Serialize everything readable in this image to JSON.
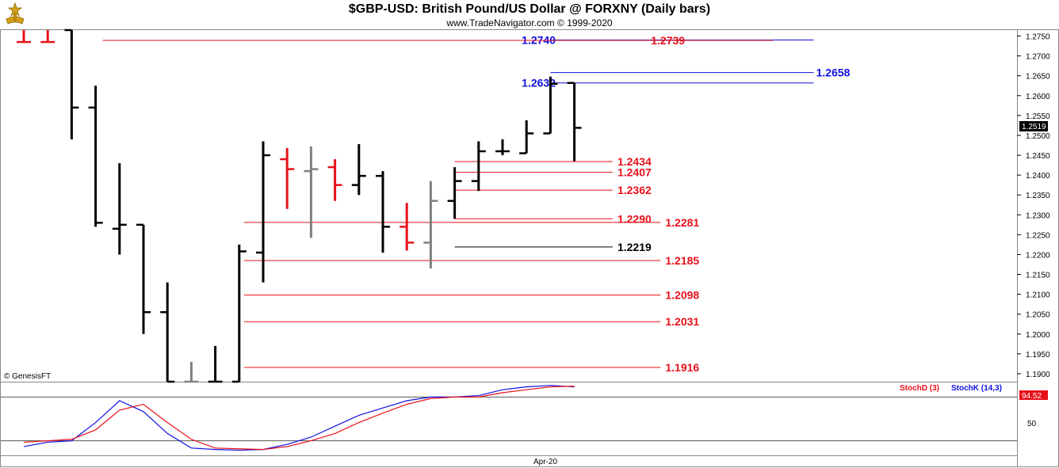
{
  "header": {
    "title": "$GBP-USD:  British Pound/US Dollar @ FORXNY  (Daily bars)",
    "subtitle": "www.TradeNavigator.com © 1999-2020"
  },
  "watermark": "© GenesisFT",
  "price_axis": {
    "ticks": [
      "1.2750",
      "1.2700",
      "1.2650",
      "1.2600",
      "1.2550",
      "1.2500",
      "1.2450",
      "1.2400",
      "1.2350",
      "1.2300",
      "1.2250",
      "1.2200",
      "1.2150",
      "1.2100",
      "1.2050",
      "1.2000",
      "1.1950",
      "1.1900"
    ],
    "last_price": "1.2519"
  },
  "stoch_panel": {
    "label_d": "StochD (3)",
    "label_k": "StochK (14,3)",
    "axis_tick": "50",
    "value": "94.52"
  },
  "time_axis": {
    "label": "Apr-20"
  },
  "colors": {
    "red": "#e8101a",
    "blue": "#1010e0",
    "black": "#000000",
    "grey": "#808080"
  },
  "chart_data": [
    {
      "type": "ohlc",
      "title": "$GBP-USD:  British Pound/US Dollar @ FORXNY  (Daily bars)",
      "ylim": [
        1.188,
        1.2765
      ],
      "bars": [
        {
          "o": 1.2735,
          "h": 1.2772,
          "l": 1.2735,
          "c": 1.2735,
          "color": "red"
        },
        {
          "o": 1.2735,
          "h": 1.2772,
          "l": 1.2735,
          "c": 1.2735,
          "color": "red"
        },
        {
          "o": 1.28,
          "h": 1.28,
          "l": 1.249,
          "c": 1.257,
          "color": "black"
        },
        {
          "o": 1.257,
          "h": 1.2625,
          "l": 1.227,
          "c": 1.228,
          "color": "black"
        },
        {
          "o": 1.2265,
          "h": 1.243,
          "l": 1.22,
          "c": 1.2275,
          "color": "black"
        },
        {
          "o": 1.2275,
          "h": 1.2275,
          "l": 1.2,
          "c": 1.2055,
          "color": "black"
        },
        {
          "o": 1.2055,
          "h": 1.213,
          "l": 1.188,
          "c": 1.188,
          "color": "black"
        },
        {
          "o": 1.188,
          "h": 1.193,
          "l": 1.188,
          "c": 1.188,
          "color": "grey"
        },
        {
          "o": 1.188,
          "h": 1.197,
          "l": 1.188,
          "c": 1.188,
          "color": "black"
        },
        {
          "o": 1.188,
          "h": 1.2225,
          "l": 1.188,
          "c": 1.2208,
          "color": "black"
        },
        {
          "o": 1.2205,
          "h": 1.2485,
          "l": 1.213,
          "c": 1.245,
          "color": "black"
        },
        {
          "o": 1.244,
          "h": 1.2468,
          "l": 1.2315,
          "c": 1.2415,
          "color": "red"
        },
        {
          "o": 1.241,
          "h": 1.2472,
          "l": 1.2242,
          "c": 1.2415,
          "color": "grey"
        },
        {
          "o": 1.242,
          "h": 1.244,
          "l": 1.2335,
          "c": 1.2375,
          "color": "red"
        },
        {
          "o": 1.2375,
          "h": 1.2478,
          "l": 1.235,
          "c": 1.2398,
          "color": "black"
        },
        {
          "o": 1.2398,
          "h": 1.241,
          "l": 1.2205,
          "c": 1.227,
          "color": "black"
        },
        {
          "o": 1.227,
          "h": 1.233,
          "l": 1.221,
          "c": 1.223,
          "color": "red"
        },
        {
          "o": 1.223,
          "h": 1.2385,
          "l": 1.2165,
          "c": 1.2335,
          "color": "grey"
        },
        {
          "o": 1.2335,
          "h": 1.242,
          "l": 1.229,
          "c": 1.2385,
          "color": "black"
        },
        {
          "o": 1.2385,
          "h": 1.2485,
          "l": 1.236,
          "c": 1.246,
          "color": "black"
        },
        {
          "o": 1.246,
          "h": 1.249,
          "l": 1.245,
          "c": 1.246,
          "color": "black"
        },
        {
          "o": 1.2455,
          "h": 1.2538,
          "l": 1.2455,
          "c": 1.2505,
          "color": "black"
        },
        {
          "o": 1.2505,
          "h": 1.2648,
          "l": 1.2505,
          "c": 1.263,
          "color": "black"
        },
        {
          "o": 1.2632,
          "h": 1.2632,
          "l": 1.2435,
          "c": 1.2519,
          "color": "black"
        }
      ],
      "levels": [
        {
          "value": 1.274,
          "label": "1.2740",
          "color": "blue",
          "from_bar": 22,
          "to_bar": 33,
          "label_bar": 20.8
        },
        {
          "value": 1.2739,
          "label": "1.2739",
          "color": "red",
          "from_bar": 3.3,
          "to_bar": 31.3,
          "label_bar": 26.2
        },
        {
          "value": 1.2658,
          "label": "1.2658",
          "color": "blue",
          "from_bar": 22,
          "to_bar": 33,
          "label_bar": 33.1
        },
        {
          "value": 1.2632,
          "label": "1.2632",
          "color": "blue",
          "from_bar": 22,
          "to_bar": 33,
          "label_bar": 20.8
        },
        {
          "value": 1.2434,
          "label": "1.2434",
          "color": "red",
          "from_bar": 18,
          "to_bar": 24.6,
          "label_bar": 24.8
        },
        {
          "value": 1.2407,
          "label": "1.2407",
          "color": "red",
          "from_bar": 18,
          "to_bar": 24.6,
          "label_bar": 24.8
        },
        {
          "value": 1.2362,
          "label": "1.2362",
          "color": "red",
          "from_bar": 18,
          "to_bar": 24.6,
          "label_bar": 24.8
        },
        {
          "value": 1.229,
          "label": "1.2290",
          "color": "red",
          "from_bar": 18,
          "to_bar": 24.6,
          "label_bar": 24.8
        },
        {
          "value": 1.2281,
          "label": "1.2281",
          "color": "red",
          "from_bar": 9.2,
          "to_bar": 26.6,
          "label_bar": 26.8
        },
        {
          "value": 1.2219,
          "label": "1.2219",
          "color": "black",
          "from_bar": 18,
          "to_bar": 24.6,
          "label_bar": 24.8
        },
        {
          "value": 1.2185,
          "label": "1.2185",
          "color": "red",
          "from_bar": 9.2,
          "to_bar": 26.6,
          "label_bar": 26.8
        },
        {
          "value": 1.2098,
          "label": "1.2098",
          "color": "red",
          "from_bar": 9.2,
          "to_bar": 26.6,
          "label_bar": 26.8
        },
        {
          "value": 1.2031,
          "label": "1.2031",
          "color": "red",
          "from_bar": 9.2,
          "to_bar": 26.6,
          "label_bar": 26.8
        },
        {
          "value": 1.1916,
          "label": "1.1916",
          "color": "red",
          "from_bar": 9.2,
          "to_bar": 26.6,
          "label_bar": 26.8
        }
      ]
    },
    {
      "type": "line",
      "ylim": [
        0,
        100
      ],
      "grid_lines": [
        80,
        20
      ],
      "x": [
        0,
        1,
        2,
        3,
        4,
        5,
        6,
        7,
        8,
        9,
        10,
        11,
        12,
        13,
        14,
        15,
        16,
        17,
        18,
        19,
        20,
        21,
        22,
        23
      ],
      "series": [
        {
          "name": "StochK (14,3)",
          "color": "blue",
          "values": [
            12,
            18,
            20,
            45,
            75,
            60,
            30,
            10,
            8,
            7,
            8,
            15,
            25,
            40,
            55,
            65,
            75,
            80,
            80,
            82,
            90,
            94,
            96,
            94
          ]
        },
        {
          "name": "StochD (3)",
          "color": "red",
          "values": [
            18,
            20,
            22,
            35,
            62,
            70,
            45,
            22,
            10,
            9,
            8,
            12,
            20,
            30,
            45,
            58,
            70,
            78,
            80,
            80,
            86,
            90,
            94,
            95
          ]
        }
      ]
    }
  ]
}
